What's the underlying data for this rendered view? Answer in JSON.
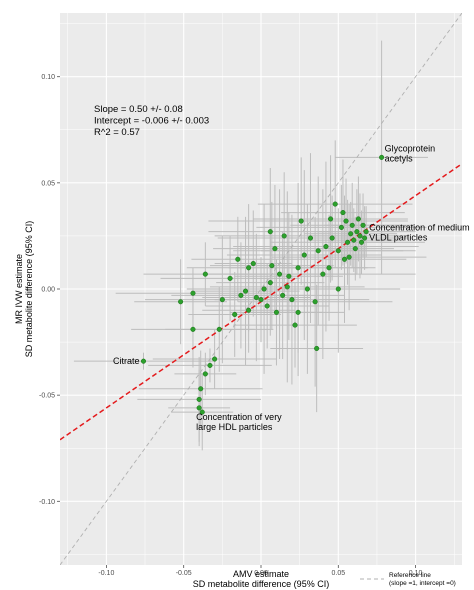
{
  "chart_data": {
    "type": "scatter",
    "title": "",
    "xlabel_lines": [
      "AMV estimate",
      "SD metabolite difference (95% CI)"
    ],
    "ylabel_lines": [
      "MR IVW estimate",
      "SD metabolite difference (95% CI)"
    ],
    "xlim": [
      -0.13,
      0.13
    ],
    "ylim": [
      -0.13,
      0.13
    ],
    "xticks": [
      -0.1,
      -0.05,
      0.0,
      0.05,
      0.1
    ],
    "xtick_labels": [
      "-0.10",
      "-0.05",
      "0.00",
      "0.05",
      "0.10"
    ],
    "yticks": [
      -0.1,
      -0.05,
      0.0,
      0.05,
      0.1
    ],
    "ytick_labels": [
      "-0.10",
      "-0.05",
      "0.00",
      "0.05",
      "0.10"
    ],
    "grid": true,
    "background": "#ebebeb",
    "point_color": "#2ca02c",
    "errorbar_color": "#bdbdbd",
    "fit_line": {
      "slope": 0.5,
      "intercept": -0.006,
      "color": "#e41a1c",
      "style": "dashed"
    },
    "reference_line": {
      "slope": 1,
      "intercept": 0,
      "color": "#b0b0b0",
      "style": "dashed"
    },
    "stats_text": [
      "Slope = 0.50 +/- 0.08",
      "Intercept = -0.006 +/- 0.003",
      "R^2 = 0.57"
    ],
    "legend": {
      "position": "bottom-right",
      "label_lines": [
        "Reference line",
        "(slope =1, intercept =0)"
      ]
    },
    "annotations": [
      {
        "lines": [
          "Glycoprotein",
          "acetyls"
        ],
        "x": 0.078,
        "y": 0.062
      },
      {
        "lines": [
          "Concentration of medium",
          "VLDL particles"
        ],
        "x": 0.068,
        "y": 0.027
      },
      {
        "lines": [
          "Citrate"
        ],
        "x": -0.076,
        "y": -0.034
      },
      {
        "lines": [
          "Concentration of very",
          "large HDL particles"
        ],
        "x": -0.04,
        "y": -0.056
      }
    ],
    "points": [
      {
        "x": 0.078,
        "y": 0.062,
        "xe": 0.03,
        "ye": 0.055
      },
      {
        "x": 0.068,
        "y": 0.027,
        "xe": 0.032,
        "ye": 0.012
      },
      {
        "x": -0.076,
        "y": -0.034,
        "xe": 0.045,
        "ye": 0.004
      },
      {
        "x": -0.04,
        "y": -0.056,
        "xe": 0.02,
        "ye": 0.018
      },
      {
        "x": -0.052,
        "y": -0.006,
        "xe": 0.03,
        "ye": 0.02
      },
      {
        "x": -0.044,
        "y": -0.002,
        "xe": 0.05,
        "ye": 0.012
      },
      {
        "x": -0.036,
        "y": 0.007,
        "xe": 0.04,
        "ye": 0.015
      },
      {
        "x": -0.044,
        "y": -0.019,
        "xe": 0.04,
        "ye": 0.018
      },
      {
        "x": -0.033,
        "y": -0.036,
        "xe": 0.04,
        "ye": 0.008
      },
      {
        "x": -0.036,
        "y": -0.04,
        "xe": 0.02,
        "ye": 0.01
      },
      {
        "x": -0.039,
        "y": -0.047,
        "xe": 0.04,
        "ye": 0.018
      },
      {
        "x": -0.04,
        "y": -0.052,
        "xe": 0.04,
        "ye": 0.02
      },
      {
        "x": -0.038,
        "y": -0.058,
        "xe": 0.02,
        "ye": 0.018
      },
      {
        "x": -0.03,
        "y": -0.033,
        "xe": 0.04,
        "ye": 0.014
      },
      {
        "x": -0.027,
        "y": -0.019,
        "xe": 0.035,
        "ye": 0.02
      },
      {
        "x": -0.025,
        "y": -0.005,
        "xe": 0.05,
        "ye": 0.03
      },
      {
        "x": -0.02,
        "y": 0.005,
        "xe": 0.045,
        "ye": 0.02
      },
      {
        "x": -0.017,
        "y": -0.012,
        "xe": 0.03,
        "ye": 0.02
      },
      {
        "x": -0.013,
        "y": -0.003,
        "xe": 0.045,
        "ye": 0.025
      },
      {
        "x": -0.01,
        "y": -0.001,
        "xe": 0.035,
        "ye": 0.035
      },
      {
        "x": -0.008,
        "y": 0.01,
        "xe": 0.04,
        "ye": 0.03
      },
      {
        "x": -0.005,
        "y": 0.012,
        "xe": 0.025,
        "ye": 0.025
      },
      {
        "x": -0.003,
        "y": -0.004,
        "xe": 0.035,
        "ye": 0.03
      },
      {
        "x": 0.0,
        "y": -0.005,
        "xe": 0.03,
        "ye": 0.02
      },
      {
        "x": 0.002,
        "y": 0.0,
        "xe": 0.05,
        "ye": 0.04
      },
      {
        "x": 0.004,
        "y": -0.008,
        "xe": 0.04,
        "ye": 0.02
      },
      {
        "x": 0.006,
        "y": 0.003,
        "xe": 0.035,
        "ye": 0.025
      },
      {
        "x": 0.007,
        "y": 0.011,
        "xe": 0.04,
        "ye": 0.03
      },
      {
        "x": 0.009,
        "y": 0.019,
        "xe": 0.04,
        "ye": 0.03
      },
      {
        "x": 0.01,
        "y": -0.011,
        "xe": 0.03,
        "ye": 0.025
      },
      {
        "x": 0.012,
        "y": 0.007,
        "xe": 0.05,
        "ye": 0.04
      },
      {
        "x": 0.014,
        "y": -0.003,
        "xe": 0.04,
        "ye": 0.03
      },
      {
        "x": 0.015,
        "y": 0.025,
        "xe": 0.045,
        "ye": 0.03
      },
      {
        "x": 0.017,
        "y": 0.001,
        "xe": 0.05,
        "ye": 0.045
      },
      {
        "x": 0.018,
        "y": 0.006,
        "xe": 0.035,
        "ye": 0.03
      },
      {
        "x": 0.02,
        "y": -0.005,
        "xe": 0.05,
        "ye": 0.04
      },
      {
        "x": 0.022,
        "y": -0.017,
        "xe": 0.04,
        "ye": 0.02
      },
      {
        "x": 0.024,
        "y": 0.01,
        "xe": 0.045,
        "ye": 0.04
      },
      {
        "x": 0.026,
        "y": 0.032,
        "xe": 0.06,
        "ye": 0.03
      },
      {
        "x": 0.028,
        "y": 0.016,
        "xe": 0.05,
        "ye": 0.04
      },
      {
        "x": 0.03,
        "y": 0.0,
        "xe": 0.04,
        "ye": 0.04
      },
      {
        "x": 0.032,
        "y": 0.024,
        "xe": 0.06,
        "ye": 0.04
      },
      {
        "x": 0.035,
        "y": -0.006,
        "xe": 0.05,
        "ye": 0.04
      },
      {
        "x": 0.037,
        "y": 0.018,
        "xe": 0.055,
        "ye": 0.035
      },
      {
        "x": 0.04,
        "y": 0.007,
        "xe": 0.06,
        "ye": 0.04
      },
      {
        "x": 0.042,
        "y": 0.02,
        "xe": 0.06,
        "ye": 0.04
      },
      {
        "x": 0.045,
        "y": 0.033,
        "xe": 0.05,
        "ye": 0.03
      },
      {
        "x": 0.046,
        "y": 0.024,
        "xe": 0.05,
        "ye": 0.02
      },
      {
        "x": 0.048,
        "y": 0.04,
        "xe": 0.05,
        "ye": 0.03
      },
      {
        "x": 0.05,
        "y": 0.018,
        "xe": 0.05,
        "ye": 0.02
      },
      {
        "x": 0.052,
        "y": 0.029,
        "xe": 0.055,
        "ye": 0.02
      },
      {
        "x": 0.053,
        "y": 0.036,
        "xe": 0.04,
        "ye": 0.025
      },
      {
        "x": 0.055,
        "y": 0.032,
        "xe": 0.04,
        "ye": 0.02
      },
      {
        "x": 0.056,
        "y": 0.022,
        "xe": 0.05,
        "ye": 0.02
      },
      {
        "x": 0.057,
        "y": 0.015,
        "xe": 0.05,
        "ye": 0.025
      },
      {
        "x": 0.058,
        "y": 0.026,
        "xe": 0.03,
        "ye": 0.015
      },
      {
        "x": 0.059,
        "y": 0.03,
        "xe": 0.04,
        "ye": 0.02
      },
      {
        "x": 0.06,
        "y": 0.023,
        "xe": 0.03,
        "ye": 0.015
      },
      {
        "x": 0.061,
        "y": 0.019,
        "xe": 0.025,
        "ye": 0.015
      },
      {
        "x": 0.062,
        "y": 0.027,
        "xe": 0.025,
        "ye": 0.02
      },
      {
        "x": 0.063,
        "y": 0.033,
        "xe": 0.03,
        "ye": 0.02
      },
      {
        "x": 0.064,
        "y": 0.025,
        "xe": 0.03,
        "ye": 0.02
      },
      {
        "x": 0.065,
        "y": 0.022,
        "xe": 0.02,
        "ye": 0.015
      },
      {
        "x": 0.066,
        "y": 0.03,
        "xe": 0.025,
        "ye": 0.015
      },
      {
        "x": 0.067,
        "y": 0.024,
        "xe": 0.02,
        "ye": 0.015
      },
      {
        "x": 0.054,
        "y": 0.014,
        "xe": 0.04,
        "ye": 0.03
      },
      {
        "x": 0.036,
        "y": -0.028,
        "xe": 0.03,
        "ye": 0.03
      },
      {
        "x": 0.024,
        "y": -0.011,
        "xe": 0.03,
        "ye": 0.03
      },
      {
        "x": -0.008,
        "y": -0.01,
        "xe": 0.03,
        "ye": 0.02
      },
      {
        "x": -0.015,
        "y": 0.014,
        "xe": 0.03,
        "ye": 0.02
      },
      {
        "x": 0.044,
        "y": 0.01,
        "xe": 0.03,
        "ye": 0.025
      },
      {
        "x": 0.05,
        "y": 0.0,
        "xe": 0.04,
        "ye": 0.03
      },
      {
        "x": 0.006,
        "y": 0.027,
        "xe": 0.04,
        "ye": 0.03
      }
    ]
  }
}
